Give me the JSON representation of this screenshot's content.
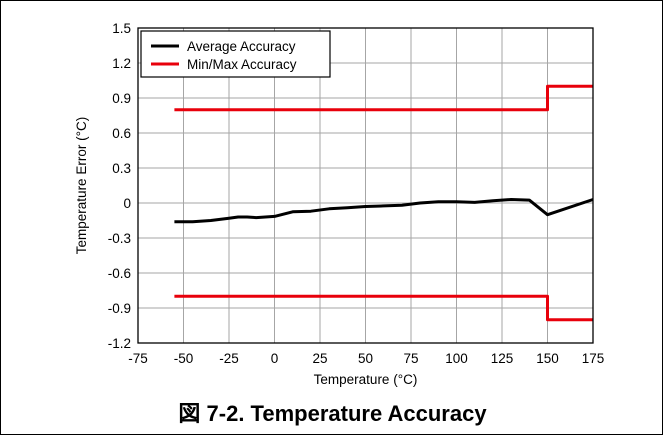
{
  "caption": "図 7-2. Temperature Accuracy",
  "chart_data": {
    "type": "line",
    "xlabel": "Temperature (°C)",
    "ylabel": "Temperature Error (°C)",
    "xlim": [
      -75,
      175
    ],
    "ylim": [
      -1.2,
      1.5
    ],
    "xticks": [
      -75,
      -50,
      -25,
      0,
      25,
      50,
      75,
      100,
      125,
      150,
      175
    ],
    "yticks": [
      -1.2,
      -0.9,
      -0.6,
      -0.3,
      0,
      0.3,
      0.6,
      0.9,
      1.2,
      1.5
    ],
    "xtick_labels": [
      "-75",
      "-50",
      "-25",
      "0",
      "25",
      "50",
      "75",
      "100",
      "125",
      "150",
      "175"
    ],
    "ytick_labels": [
      "-1.2",
      "-0.9",
      "-0.6",
      "-0.3",
      "0",
      "0.3",
      "0.6",
      "0.9",
      "1.2",
      "1.5"
    ],
    "grid": true,
    "legend_position": "top-left",
    "series": [
      {
        "name": "Average Accuracy",
        "color": "#000000",
        "x": [
          -55,
          -45,
          -35,
          -25,
          -20,
          -15,
          -10,
          -5,
          0,
          10,
          20,
          30,
          40,
          50,
          60,
          70,
          80,
          90,
          100,
          110,
          120,
          130,
          140,
          150,
          175
        ],
        "y": [
          -0.16,
          -0.16,
          -0.15,
          -0.13,
          -0.12,
          -0.12,
          -0.125,
          -0.12,
          -0.115,
          -0.075,
          -0.07,
          -0.05,
          -0.04,
          -0.03,
          -0.025,
          -0.02,
          0.0,
          0.01,
          0.01,
          0.005,
          0.02,
          0.03,
          0.025,
          -0.1,
          0.03
        ]
      },
      {
        "name": "Min/Max Accuracy",
        "color": "#e8000b",
        "x": [
          -55,
          150,
          150,
          175
        ],
        "y": [
          0.8,
          0.8,
          1.0,
          1.0
        ]
      },
      {
        "name": "",
        "color": "#e8000b",
        "x": [
          -55,
          150,
          150,
          175
        ],
        "y": [
          -0.8,
          -0.8,
          -1.0,
          -1.0
        ]
      }
    ]
  }
}
